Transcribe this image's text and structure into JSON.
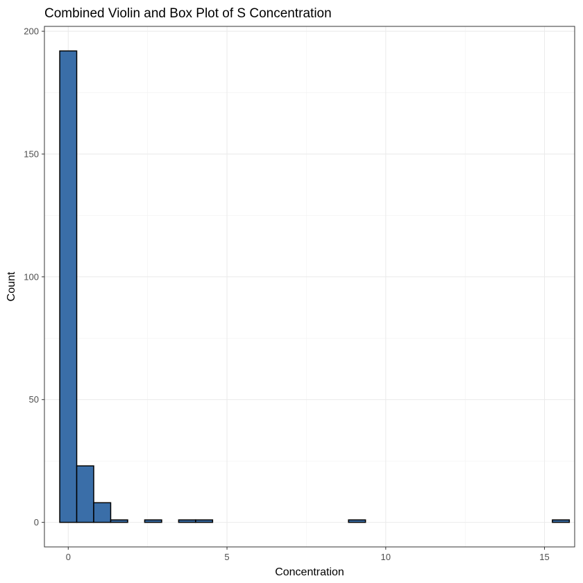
{
  "colors": {
    "bar_fill": "#3a6ea8",
    "bar_stroke": "#000000",
    "background": "#ffffff"
  },
  "chart_data": {
    "type": "bar",
    "title": "Combined Violin and Box Plot of S Concentration",
    "xlabel": "Concentration",
    "ylabel": "Count",
    "xlim": [
      -0.75,
      15.95
    ],
    "ylim": [
      -10,
      202
    ],
    "x_ticks": [
      0,
      5,
      10,
      15
    ],
    "x_tick_labels": [
      "0",
      "5",
      "10",
      "15"
    ],
    "y_ticks": [
      0,
      50,
      100,
      150,
      200
    ],
    "y_tick_labels": [
      "0",
      "50",
      "100",
      "150",
      "200"
    ],
    "grid": true,
    "legend": "none",
    "bin_width": 0.535,
    "bin_start": -0.2675,
    "values": [
      192,
      23,
      8,
      1,
      0,
      1,
      0,
      1,
      1,
      0,
      0,
      0,
      0,
      0,
      0,
      0,
      0,
      1,
      0,
      0,
      0,
      0,
      0,
      0,
      0,
      0,
      0,
      0,
      0,
      1
    ]
  }
}
